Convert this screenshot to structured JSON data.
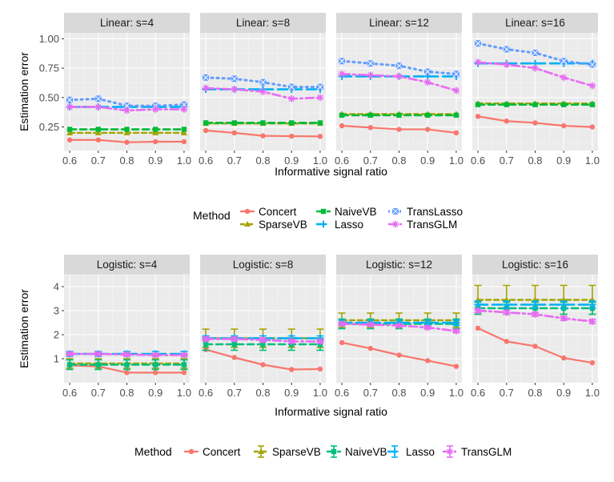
{
  "colors": {
    "Concert": "#f8766d",
    "SparseVB": "#a3a500",
    "NaiveVB": "#00bf7d",
    "Lasso": "#00b0f6",
    "TransLasso": "#619cff",
    "TransGLM": "#e76bf3",
    "NaiveVB_top": "#00ba38",
    "panel_bg": "#ebebeb",
    "strip_bg": "#d9d9d9"
  },
  "legend_top": {
    "title": "Method",
    "entries": [
      "Concert",
      "SparseVB",
      "NaiveVB",
      "Lasso",
      "TransLasso",
      "TransGLM"
    ]
  },
  "legend_bottom": {
    "title": "Method",
    "entries": [
      "Concert",
      "SparseVB",
      "NaiveVB",
      "Lasso",
      "TransGLM"
    ]
  },
  "chart_data": [
    {
      "type": "line",
      "title": "Linear",
      "xlabel": "Informative signal ratio",
      "ylabel": "Estimation error",
      "x": [
        0.6,
        0.7,
        0.8,
        0.9,
        1.0
      ],
      "x_tick_labels": [
        "0.6",
        "0.7",
        "0.8",
        "0.9",
        "1.0"
      ],
      "ylim": [
        0.05,
        1.05
      ],
      "y_ticks": [
        0.25,
        0.5,
        0.75,
        1.0
      ],
      "y_tick_labels": [
        "0.25",
        "0.50",
        "0.75",
        "1.00"
      ],
      "panels": [
        {
          "strip": "Linear: s=4",
          "series": [
            {
              "name": "Concert",
              "values": [
                0.14,
                0.14,
                0.12,
                0.125,
                0.125
              ]
            },
            {
              "name": "SparseVB",
              "values": [
                0.2,
                0.2,
                0.2,
                0.2,
                0.2
              ]
            },
            {
              "name": "NaiveVB",
              "values": [
                0.23,
                0.23,
                0.23,
                0.23,
                0.23
              ]
            },
            {
              "name": "Lasso",
              "values": [
                0.42,
                0.42,
                0.42,
                0.42,
                0.42
              ]
            },
            {
              "name": "TransLasso",
              "values": [
                0.48,
                0.49,
                0.43,
                0.43,
                0.44
              ]
            },
            {
              "name": "TransGLM",
              "values": [
                0.42,
                0.42,
                0.39,
                0.4,
                0.4
              ]
            }
          ]
        },
        {
          "strip": "Linear: s=8",
          "series": [
            {
              "name": "Concert",
              "values": [
                0.22,
                0.2,
                0.175,
                0.172,
                0.17
              ]
            },
            {
              "name": "SparseVB",
              "values": [
                0.28,
                0.28,
                0.28,
                0.28,
                0.28
              ]
            },
            {
              "name": "NaiveVB",
              "values": [
                0.285,
                0.285,
                0.285,
                0.285,
                0.285
              ]
            },
            {
              "name": "Lasso",
              "values": [
                0.57,
                0.57,
                0.57,
                0.57,
                0.57
              ]
            },
            {
              "name": "TransLasso",
              "values": [
                0.67,
                0.66,
                0.63,
                0.59,
                0.59
              ]
            },
            {
              "name": "TransGLM",
              "values": [
                0.58,
                0.57,
                0.55,
                0.49,
                0.5
              ]
            }
          ]
        },
        {
          "strip": "Linear: s=12",
          "series": [
            {
              "name": "Concert",
              "values": [
                0.26,
                0.245,
                0.23,
                0.23,
                0.2
              ]
            },
            {
              "name": "SparseVB",
              "values": [
                0.36,
                0.36,
                0.36,
                0.36,
                0.36
              ]
            },
            {
              "name": "NaiveVB",
              "values": [
                0.35,
                0.35,
                0.35,
                0.35,
                0.35
              ]
            },
            {
              "name": "Lasso",
              "values": [
                0.68,
                0.68,
                0.68,
                0.68,
                0.68
              ]
            },
            {
              "name": "TransLasso",
              "values": [
                0.81,
                0.79,
                0.77,
                0.72,
                0.7
              ]
            },
            {
              "name": "TransGLM",
              "values": [
                0.7,
                0.69,
                0.68,
                0.63,
                0.56
              ]
            }
          ]
        },
        {
          "strip": "Linear: s=16",
          "series": [
            {
              "name": "Concert",
              "values": [
                0.34,
                0.3,
                0.285,
                0.26,
                0.25
              ]
            },
            {
              "name": "SparseVB",
              "values": [
                0.45,
                0.45,
                0.45,
                0.45,
                0.45
              ]
            },
            {
              "name": "NaiveVB",
              "values": [
                0.44,
                0.44,
                0.44,
                0.44,
                0.44
              ]
            },
            {
              "name": "Lasso",
              "values": [
                0.79,
                0.79,
                0.79,
                0.79,
                0.79
              ]
            },
            {
              "name": "TransLasso",
              "values": [
                0.96,
                0.91,
                0.88,
                0.81,
                0.78
              ]
            },
            {
              "name": "TransGLM",
              "values": [
                0.8,
                0.78,
                0.75,
                0.67,
                0.6
              ]
            }
          ]
        }
      ]
    },
    {
      "type": "line",
      "title": "Logistic",
      "xlabel": "Informative signal ratio",
      "ylabel": "Estimation error",
      "x": [
        0.6,
        0.7,
        0.8,
        0.9,
        1.0
      ],
      "x_tick_labels": [
        "0.6",
        "0.7",
        "0.8",
        "0.9",
        "1.0"
      ],
      "ylim": [
        0.0,
        4.5
      ],
      "y_ticks": [
        1,
        2,
        3,
        4
      ],
      "y_tick_labels": [
        "1",
        "2",
        "3",
        "4"
      ],
      "panels": [
        {
          "strip": "Logistic: s=4",
          "series": [
            {
              "name": "Concert",
              "values": [
                0.72,
                0.68,
                0.42,
                0.42,
                0.42
              ]
            },
            {
              "name": "SparseVB",
              "values": [
                0.8,
                0.8,
                0.8,
                0.8,
                0.8
              ],
              "err": 0.2
            },
            {
              "name": "NaiveVB",
              "values": [
                0.75,
                0.75,
                0.75,
                0.75,
                0.75
              ],
              "err": 0.2
            },
            {
              "name": "Lasso",
              "values": [
                1.2,
                1.2,
                1.2,
                1.2,
                1.2
              ],
              "err": 0.1
            },
            {
              "name": "TransGLM",
              "values": [
                1.2,
                1.2,
                1.17,
                1.15,
                1.15
              ],
              "err": 0.06
            }
          ]
        },
        {
          "strip": "Logistic: s=8",
          "series": [
            {
              "name": "Concert",
              "values": [
                1.38,
                1.05,
                0.75,
                0.55,
                0.57
              ]
            },
            {
              "name": "SparseVB",
              "values": [
                1.85,
                1.85,
                1.85,
                1.85,
                1.85
              ],
              "err": 0.38
            },
            {
              "name": "NaiveVB",
              "values": [
                1.6,
                1.6,
                1.6,
                1.6,
                1.6
              ],
              "err": 0.25
            },
            {
              "name": "Lasso",
              "values": [
                1.85,
                1.85,
                1.85,
                1.85,
                1.85
              ],
              "err": 0.1
            },
            {
              "name": "TransGLM",
              "values": [
                1.82,
                1.82,
                1.78,
                1.72,
                1.72
              ],
              "err": 0.08
            }
          ]
        },
        {
          "strip": "Logistic: s=12",
          "series": [
            {
              "name": "Concert",
              "values": [
                1.67,
                1.43,
                1.15,
                0.92,
                0.68
              ]
            },
            {
              "name": "SparseVB",
              "values": [
                2.6,
                2.6,
                2.6,
                2.6,
                2.6
              ],
              "err": 0.3
            },
            {
              "name": "NaiveVB",
              "values": [
                2.45,
                2.45,
                2.45,
                2.45,
                2.45
              ],
              "err": 0.2
            },
            {
              "name": "Lasso",
              "values": [
                2.5,
                2.5,
                2.5,
                2.5,
                2.5
              ],
              "err": 0.1
            },
            {
              "name": "TransGLM",
              "values": [
                2.45,
                2.42,
                2.38,
                2.3,
                2.15
              ],
              "err": 0.06
            }
          ]
        },
        {
          "strip": "Logistic: s=16",
          "series": [
            {
              "name": "Concert",
              "values": [
                2.27,
                1.72,
                1.52,
                1.03,
                0.83
              ]
            },
            {
              "name": "SparseVB",
              "values": [
                3.45,
                3.45,
                3.45,
                3.45,
                3.45
              ],
              "err": 0.6
            },
            {
              "name": "NaiveVB",
              "values": [
                3.1,
                3.1,
                3.1,
                3.1,
                3.1
              ],
              "err": 0.25
            },
            {
              "name": "Lasso",
              "values": [
                3.25,
                3.25,
                3.25,
                3.25,
                3.25
              ],
              "err": 0.15
            },
            {
              "name": "TransGLM",
              "values": [
                3.0,
                2.93,
                2.85,
                2.68,
                2.55
              ],
              "err": 0.08
            }
          ]
        }
      ]
    }
  ]
}
